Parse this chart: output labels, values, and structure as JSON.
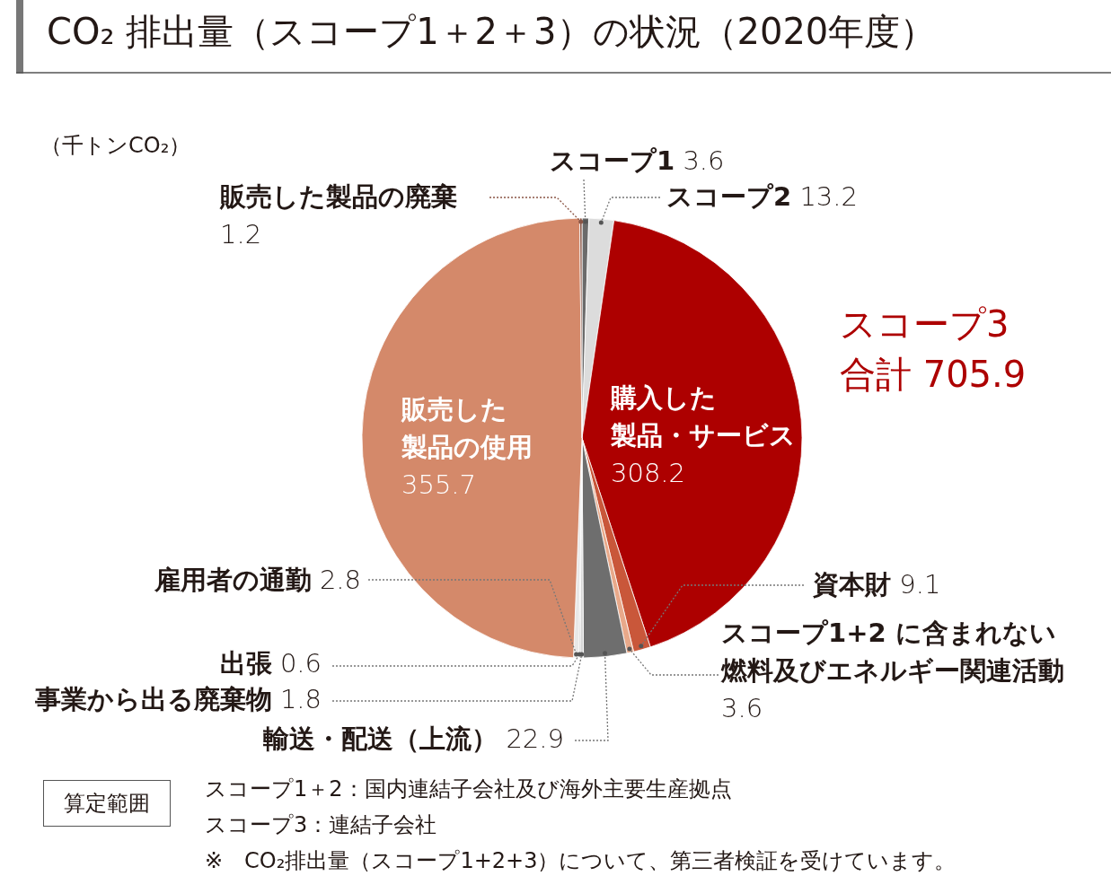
{
  "chart_data": {
    "type": "pie",
    "title": "CO₂ 排出量（スコープ1＋2＋3）の状況（2020年度）",
    "categories": [
      "スコープ1",
      "スコープ2",
      "購入した製品・サービス",
      "資本財",
      "スコープ1+2 に含まれない燃料及びエネルギー関連活動",
      "輸送・配送（上流）",
      "事業から出る廃棄物",
      "出張",
      "雇用者の通勤",
      "販売した製品の使用",
      "販売した製品の廃棄"
    ],
    "values": [
      3.6,
      13.2,
      308.2,
      9.1,
      3.6,
      22.9,
      1.8,
      0.6,
      2.8,
      355.7,
      1.2
    ],
    "colors": [
      "#6b6b6b",
      "#dcdcdc",
      "#ad0000",
      "#c9573a",
      "#e8a98a",
      "#6e6e6e",
      "#d6d6d6",
      "#a9a9a9",
      "#e8e8e8",
      "#d4896a",
      "#8a5545"
    ],
    "data_labels": true,
    "annotations": [
      "（千トンCO₂）",
      "スコープ3",
      "合計 705.9",
      "算定範囲",
      "スコープ1＋2：国内連結子会社及び海外主要生産拠点",
      "スコープ3：連結子会社",
      "※　CO₂排出量（スコープ1+2+3）について、第三者検証を受けています。"
    ]
  }
}
